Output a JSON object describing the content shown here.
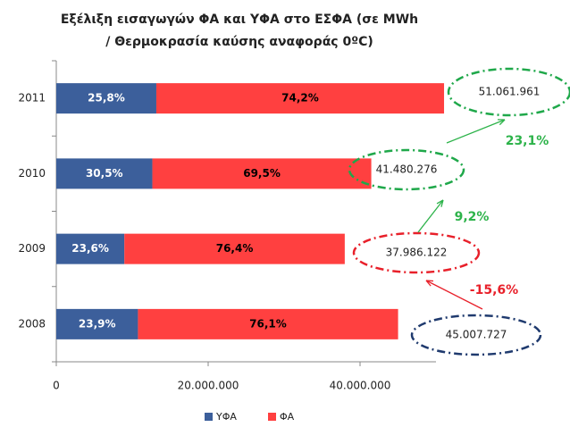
{
  "chart_data": {
    "type": "stacked-barh",
    "title": "Εξέλιξη εισαγωγών ΦΑ και ΥΦΑ στο ΕΣΦΑ (σε MWh",
    "subtitle": "/ Θερμοκρασία καύσης αναφοράς 0ºC)",
    "categories": [
      "2011",
      "2010",
      "2009",
      "2008"
    ],
    "series": [
      {
        "name": "ΥΦΑ",
        "color": "#3c5f9b",
        "label_color": "#ffffff",
        "values": [
          13173986,
          12651484,
          8964725,
          10756847
        ],
        "value_labels": [
          "25,8%",
          "30,5%",
          "23,6%",
          "23,9%"
        ]
      },
      {
        "name": "ΦΑ",
        "color": "#ff4040",
        "label_color": "#000000",
        "values": [
          37887975,
          28828792,
          29021397,
          34250880
        ],
        "value_labels": [
          "74,2%",
          "69,5%",
          "76,4%",
          "76,1%"
        ]
      }
    ],
    "xlim": [
      0,
      50000000
    ],
    "xticks": [
      0,
      {
        "value": 20000000,
        "label": "20.000.000"
      },
      {
        "value": 40000000,
        "label": "40.000.000"
      }
    ],
    "legend": "bottom",
    "annotations": {
      "totals": [
        {
          "value": 51061961,
          "label": "51.061.961",
          "color": "#1fa84a"
        },
        {
          "value": 41480276,
          "label": "41.480.276",
          "color": "#1fa84a"
        },
        {
          "value": 37986122,
          "label": "37.986.122",
          "color": "#e8202a"
        },
        {
          "value": 45007727,
          "label": "45.007.727",
          "color": "#1f3a6e"
        }
      ],
      "growth": [
        {
          "value": 23.1,
          "label": "23,1%",
          "color": "#2db34a"
        },
        {
          "value": 9.2,
          "label": "9,2%",
          "color": "#2db34a"
        },
        {
          "value": -15.6,
          "label": "-15,6%",
          "color": "#e8202a"
        }
      ]
    }
  }
}
